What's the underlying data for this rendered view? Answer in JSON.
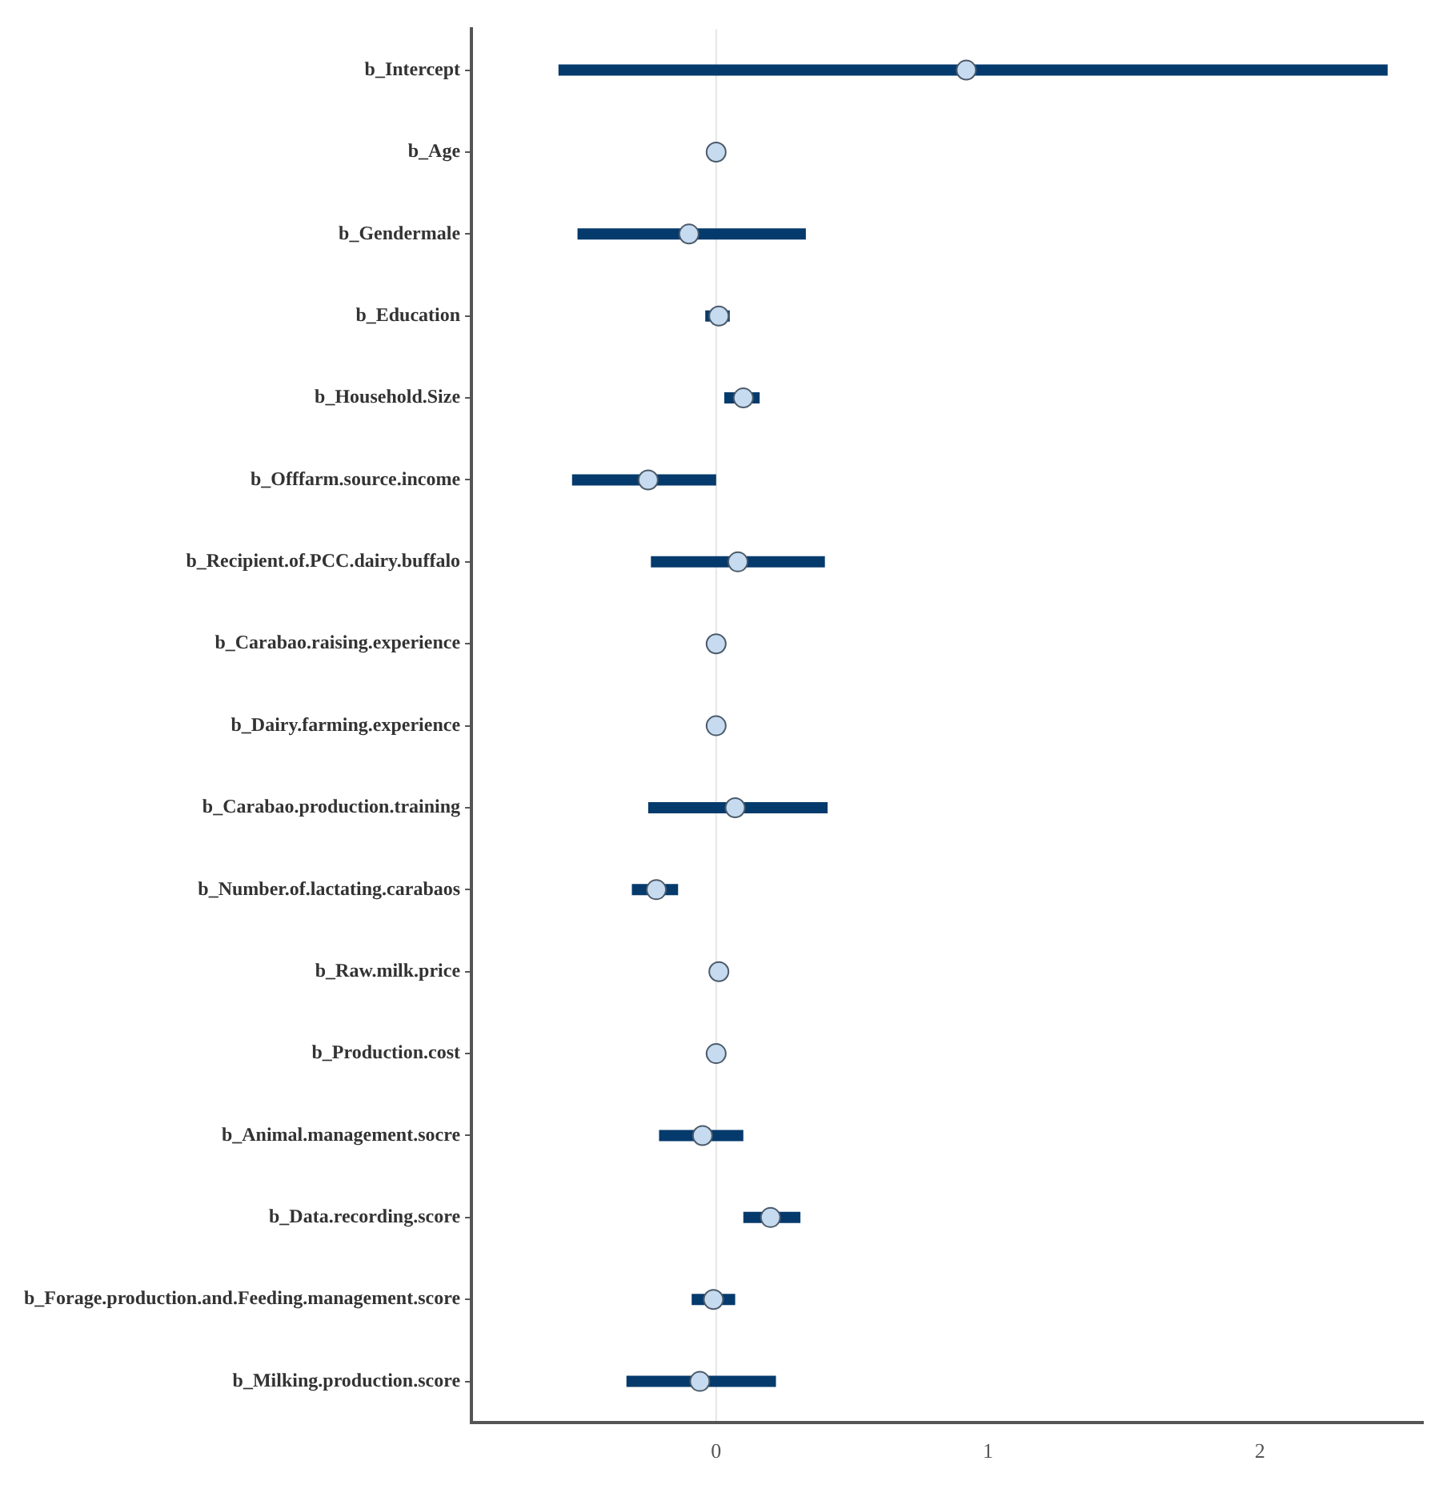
{
  "chart_data": {
    "type": "scatter",
    "orientation": "horizontal",
    "categories": [
      "b_Intercept",
      "b_Age",
      "b_Gendermale",
      "b_Education",
      "b_Household.Size",
      "b_Offfarm.source.income",
      "b_Recipient.of.PCC.dairy.buffalo",
      "b_Carabao.raising.experience",
      "b_Dairy.farming.experience",
      "b_Carabao.production.training",
      "b_Number.of.lactating.carabaos",
      "b_Raw.milk.price",
      "b_Production.cost",
      "b_Animal.management.socre",
      "b_Data.recording.score",
      "b_Forage.production.and.Feeding.management.score",
      "b_Milking.production.score"
    ],
    "series": [
      {
        "color": "#c6dbef",
        "values": [
          0.92,
          0,
          -0.1,
          0.01,
          0.1,
          -0.25,
          0.08,
          0,
          0,
          0.07,
          -0.22,
          0.01,
          0,
          -0.05,
          0.2,
          -0.01,
          -0.06
        ],
        "errors": [
          [
            -0.58,
            2.47
          ],
          null,
          [
            -0.51,
            0.33
          ],
          [
            -0.04,
            0.05
          ],
          [
            0.03,
            0.16
          ],
          [
            -0.53,
            0
          ],
          [
            -0.24,
            0.4
          ],
          null,
          null,
          [
            -0.25,
            0.41
          ],
          [
            -0.31,
            -0.14
          ],
          null,
          null,
          [
            -0.21,
            0.1
          ],
          [
            0.1,
            0.31
          ],
          [
            -0.09,
            0.07
          ],
          [
            -0.33,
            0.22
          ]
        ]
      }
    ],
    "xlim": [
      -0.9,
      2.6
    ],
    "xticks": [
      0,
      1,
      2
    ],
    "ref_lines": [
      {
        "axis": "x",
        "value": 0,
        "color": "#e6e6e6"
      }
    ],
    "marker": "circle",
    "grid": false,
    "legend": false
  }
}
